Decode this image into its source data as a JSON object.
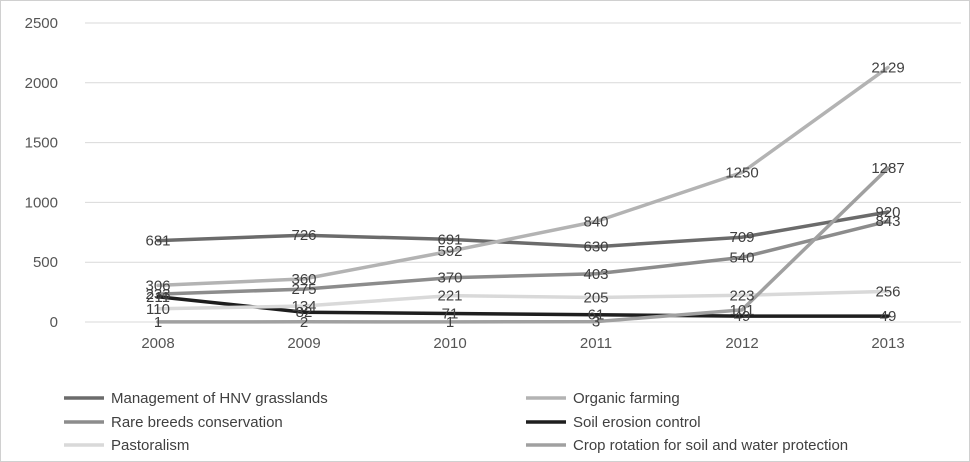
{
  "chart_data": {
    "type": "line",
    "x": [
      "2008",
      "2009",
      "2010",
      "2011",
      "2012",
      "2013"
    ],
    "ylim": [
      0,
      2500
    ],
    "yticks": [
      "0",
      "500",
      "1000",
      "1500",
      "2000",
      "2500"
    ],
    "grid": true,
    "legend_position": "bottom",
    "series": [
      {
        "name": "Management of HNV grasslands",
        "values": [
          681,
          726,
          691,
          630,
          709,
          920
        ],
        "labels": [
          "681",
          "726",
          "691",
          "630",
          "709",
          "920"
        ],
        "color": "#6b6b6b"
      },
      {
        "name": "Organic farming",
        "values": [
          306,
          360,
          592,
          840,
          1250,
          2129
        ],
        "labels": [
          "306",
          "360",
          "592",
          "840",
          "1250",
          "2129"
        ],
        "color": "#b3b3b3"
      },
      {
        "name": "Rare breeds conservation",
        "values": [
          233,
          275,
          370,
          403,
          540,
          843
        ],
        "labels": [
          "233",
          "275",
          "370",
          "403",
          "540",
          "843"
        ],
        "color": "#8c8c8c"
      },
      {
        "name": "Soil erosion control",
        "values": [
          211,
          82,
          71,
          61,
          49,
          49
        ],
        "labels": [
          "211",
          "82",
          "71",
          "61",
          "49",
          "49"
        ],
        "color": "#1e1e1e"
      },
      {
        "name": "Pastoralism",
        "values": [
          110,
          134,
          221,
          205,
          223,
          256
        ],
        "labels": [
          "110",
          "134",
          "221",
          "205",
          "223",
          "256"
        ],
        "color": "#d9d9d9"
      },
      {
        "name": "Crop rotation for soil and water protection",
        "values": [
          1,
          2,
          1,
          3,
          101,
          1287
        ],
        "labels": [
          "1",
          "2",
          "1",
          "3",
          "101",
          "1287"
        ],
        "color": "#a0a0a0"
      }
    ]
  }
}
